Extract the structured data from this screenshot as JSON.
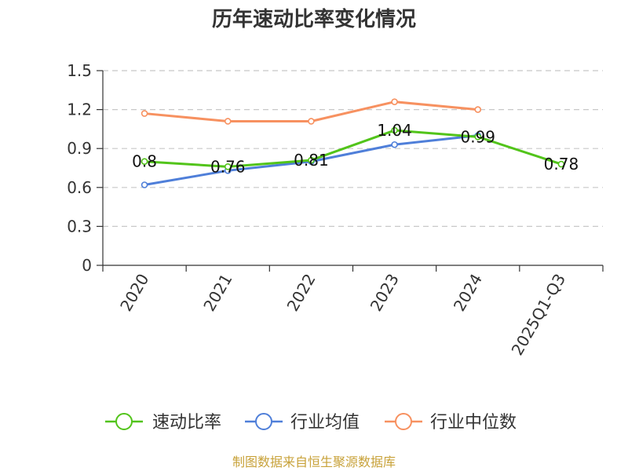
{
  "chart_data": {
    "type": "line",
    "title": "历年速动比率变化情况",
    "categories": [
      "2020",
      "2021",
      "2022",
      "2023",
      "2024",
      "2025Q1-Q3"
    ],
    "ylim": [
      0,
      1.5
    ],
    "yticks": [
      "0",
      "0.3",
      "0.6",
      "0.9",
      "1.2",
      "1.5"
    ],
    "grid": true,
    "legend_position": "bottom",
    "series": [
      {
        "name": "速动比率",
        "color": "#52c41a",
        "values": [
          0.8,
          0.76,
          0.81,
          1.04,
          0.99,
          0.78
        ],
        "labels": [
          "0.8",
          "0.76",
          "0.81",
          "1.04",
          "0.99",
          "0.78"
        ]
      },
      {
        "name": "行业均值",
        "color": "#4f7fd9",
        "values": [
          0.62,
          0.73,
          0.8,
          0.93,
          1.0,
          null
        ]
      },
      {
        "name": "行业中位数",
        "color": "#f79160",
        "values": [
          1.17,
          1.11,
          1.11,
          1.26,
          1.2,
          null
        ]
      }
    ]
  },
  "source": "制图数据来自恒生聚源数据库"
}
